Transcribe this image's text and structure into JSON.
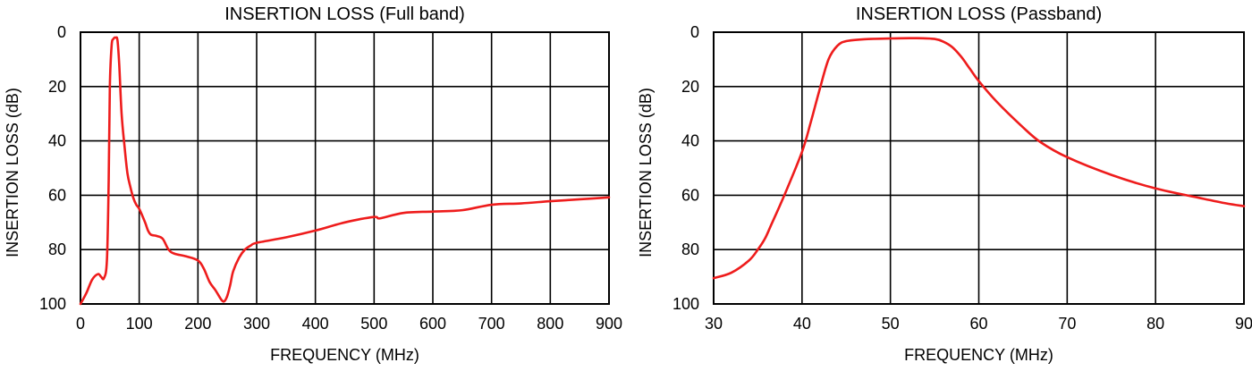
{
  "chart_data": [
    {
      "type": "line",
      "title": "INSERTION LOSS (Full band)",
      "xlabel": "FREQUENCY (MHz)",
      "ylabel": "INSERTION LOSS (dB)",
      "xlim": [
        0,
        900
      ],
      "ylim": [
        0,
        100
      ],
      "y_inverted": true,
      "grid": true,
      "xticks": [
        "0",
        "100",
        "200",
        "300",
        "400",
        "500",
        "600",
        "700",
        "800",
        "900"
      ],
      "yticks": [
        "0",
        "20",
        "40",
        "60",
        "80",
        "100"
      ],
      "line_color": "#ee1c1c",
      "series": [
        {
          "x": [
            0,
            10,
            20,
            30,
            35,
            40,
            45,
            48,
            50,
            53,
            56,
            60,
            63,
            66,
            70,
            75,
            80,
            85,
            90,
            95,
            100,
            110,
            115,
            120,
            130,
            140,
            150,
            160,
            180,
            200,
            210,
            220,
            230,
            240,
            245,
            250,
            255,
            260,
            270,
            280,
            290,
            300,
            350,
            400,
            450,
            500,
            510,
            550,
            600,
            650,
            700,
            750,
            800,
            850,
            900
          ],
          "y": [
            100,
            96,
            91,
            89,
            90,
            90.5,
            84,
            55,
            20,
            5,
            2.5,
            2,
            3,
            12,
            30,
            42,
            52,
            57,
            61,
            63.5,
            65,
            70,
            73,
            74.5,
            75,
            76,
            80,
            81.5,
            82.5,
            84,
            87,
            92,
            95,
            98.5,
            99,
            97,
            93,
            88,
            83,
            80,
            78.5,
            77.5,
            75.5,
            73,
            70,
            68,
            68.5,
            66.5,
            66,
            65.5,
            63.5,
            63,
            62.2,
            61.5,
            60.8
          ]
        }
      ]
    },
    {
      "type": "line",
      "title": "INSERTION LOSS (Passband)",
      "xlabel": "FREQUENCY (MHz)",
      "ylabel": "INSERTION LOSS (dB)",
      "xlim": [
        30,
        90
      ],
      "ylim": [
        0,
        100
      ],
      "y_inverted": true,
      "grid": true,
      "xticks": [
        "30",
        "40",
        "50",
        "60",
        "70",
        "80",
        "90"
      ],
      "yticks": [
        "0",
        "20",
        "40",
        "60",
        "80",
        "100"
      ],
      "line_color": "#ee1c1c",
      "series": [
        {
          "x": [
            30,
            32,
            34,
            35,
            35.8,
            36.5,
            38,
            40,
            41,
            42,
            43,
            44,
            45,
            47,
            50,
            53,
            55,
            56,
            57,
            58,
            59,
            60,
            62,
            65,
            67,
            70,
            75,
            80,
            85,
            88,
            90
          ],
          "y": [
            90.5,
            88.5,
            84,
            80,
            76,
            71,
            60,
            44,
            33,
            21,
            10,
            5,
            3.3,
            2.6,
            2.3,
            2.2,
            2.5,
            3.5,
            5.5,
            9,
            13.5,
            18,
            25.5,
            35,
            40.5,
            46,
            52.5,
            57.5,
            61,
            63,
            64
          ]
        }
      ]
    }
  ]
}
